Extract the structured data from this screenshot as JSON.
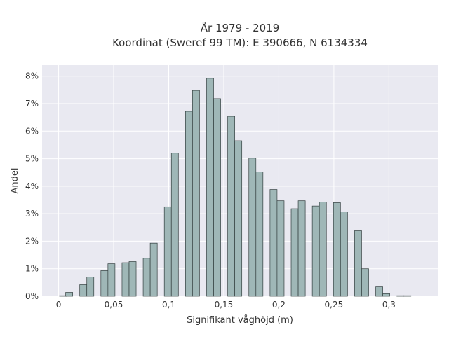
{
  "chart_data": {
    "type": "bar",
    "title": "År 1979 - 2019",
    "subtitle": "Koordinat (Sweref 99 TM): E 390666, N 6134334",
    "xlabel": "Signifikant våghöjd (m)",
    "ylabel": "Andel",
    "xlim": [
      -0.015,
      0.345
    ],
    "ylim": [
      0,
      8.4
    ],
    "x_ticks": [
      0,
      0.05,
      0.1,
      0.15,
      0.2,
      0.25,
      0.3
    ],
    "x_tick_labels": [
      "0",
      "0,05",
      "0,1",
      "0,15",
      "0,2",
      "0,25",
      "0,3"
    ],
    "y_ticks": [
      0,
      1,
      2,
      3,
      4,
      5,
      6,
      7,
      8
    ],
    "y_tick_labels": [
      "0%",
      "1%",
      "2%",
      "3%",
      "4%",
      "5%",
      "6%",
      "7%",
      "8%"
    ],
    "bar_width": 0.0064,
    "bars": [
      {
        "x": 0.004,
        "value": 0.02
      },
      {
        "x": 0.0096,
        "value": 0.14
      },
      {
        "x": 0.0224,
        "value": 0.42
      },
      {
        "x": 0.0288,
        "value": 0.7
      },
      {
        "x": 0.0416,
        "value": 0.93
      },
      {
        "x": 0.048,
        "value": 1.18
      },
      {
        "x": 0.0608,
        "value": 1.22
      },
      {
        "x": 0.0672,
        "value": 1.26
      },
      {
        "x": 0.08,
        "value": 1.38
      },
      {
        "x": 0.0864,
        "value": 1.93
      },
      {
        "x": 0.0992,
        "value": 3.25
      },
      {
        "x": 0.1056,
        "value": 5.2
      },
      {
        "x": 0.1184,
        "value": 6.72
      },
      {
        "x": 0.1248,
        "value": 7.48
      },
      {
        "x": 0.1376,
        "value": 7.92
      },
      {
        "x": 0.144,
        "value": 7.18
      },
      {
        "x": 0.1568,
        "value": 6.54
      },
      {
        "x": 0.1632,
        "value": 5.65
      },
      {
        "x": 0.176,
        "value": 5.02
      },
      {
        "x": 0.1824,
        "value": 4.52
      },
      {
        "x": 0.1952,
        "value": 3.88
      },
      {
        "x": 0.2016,
        "value": 3.47
      },
      {
        "x": 0.2144,
        "value": 3.18
      },
      {
        "x": 0.2208,
        "value": 3.47
      },
      {
        "x": 0.2336,
        "value": 3.28
      },
      {
        "x": 0.24,
        "value": 3.42
      },
      {
        "x": 0.2528,
        "value": 3.4
      },
      {
        "x": 0.2592,
        "value": 3.07
      },
      {
        "x": 0.272,
        "value": 2.38
      },
      {
        "x": 0.2784,
        "value": 1.0
      },
      {
        "x": 0.2912,
        "value": 0.34
      },
      {
        "x": 0.2976,
        "value": 0.09
      },
      {
        "x": 0.3104,
        "value": 0.02
      },
      {
        "x": 0.3168,
        "value": 0.02
      }
    ],
    "grid": true
  },
  "colors": {
    "plot_background": "#e9e9f1",
    "grid": "#ffffff",
    "bar_fill": "#9fb7b7",
    "bar_stroke": "#333f3f",
    "text": "#333333"
  }
}
